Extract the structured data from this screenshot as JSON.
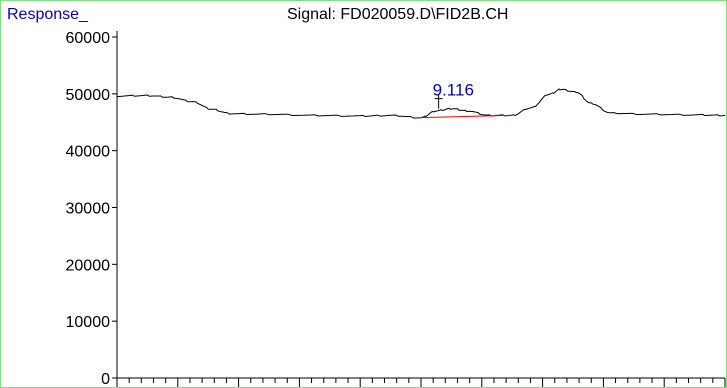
{
  "response_label": "Response_",
  "signal_title": "Signal: FD020059.D\\FID2B.CH",
  "chart_data": {
    "type": "line",
    "title": "Signal: FD020059.D\\FID2B.CH",
    "ylabel": "Response_",
    "xlabel": "",
    "ylim": [
      0,
      60000
    ],
    "xlim": [
      7.0,
      11.0
    ],
    "y_ticks": [
      0,
      10000,
      20000,
      30000,
      40000,
      50000,
      60000
    ],
    "grid": false,
    "series": [
      {
        "values": [
          [
            7.0,
            49600
          ],
          [
            7.2,
            49700
          ],
          [
            7.35,
            49400
          ],
          [
            7.5,
            48600
          ],
          [
            7.62,
            47300
          ],
          [
            7.75,
            46500
          ],
          [
            8.0,
            46400
          ],
          [
            8.3,
            46200
          ],
          [
            8.6,
            46100
          ],
          [
            8.8,
            46200
          ],
          [
            9.0,
            45800
          ],
          [
            9.1,
            47000
          ],
          [
            9.2,
            47400
          ],
          [
            9.3,
            47000
          ],
          [
            9.45,
            46200
          ],
          [
            9.6,
            46200
          ],
          [
            9.72,
            47500
          ],
          [
            9.85,
            50000
          ],
          [
            9.92,
            50800
          ],
          [
            10.02,
            50300
          ],
          [
            10.12,
            48300
          ],
          [
            10.25,
            46600
          ],
          [
            10.5,
            46400
          ],
          [
            10.8,
            46300
          ],
          [
            11.0,
            46200
          ]
        ]
      }
    ],
    "peak_annotations": [
      {
        "label": "9.116",
        "x": 9.116,
        "y": 47400,
        "baseline_start": [
          8.97,
          45800
        ],
        "baseline_end": [
          9.58,
          46200
        ]
      }
    ],
    "colors": {
      "trace": "#000000",
      "baseline": "#ff0000",
      "peak_label": "#0000cc",
      "frame": "#7ee07e"
    }
  }
}
